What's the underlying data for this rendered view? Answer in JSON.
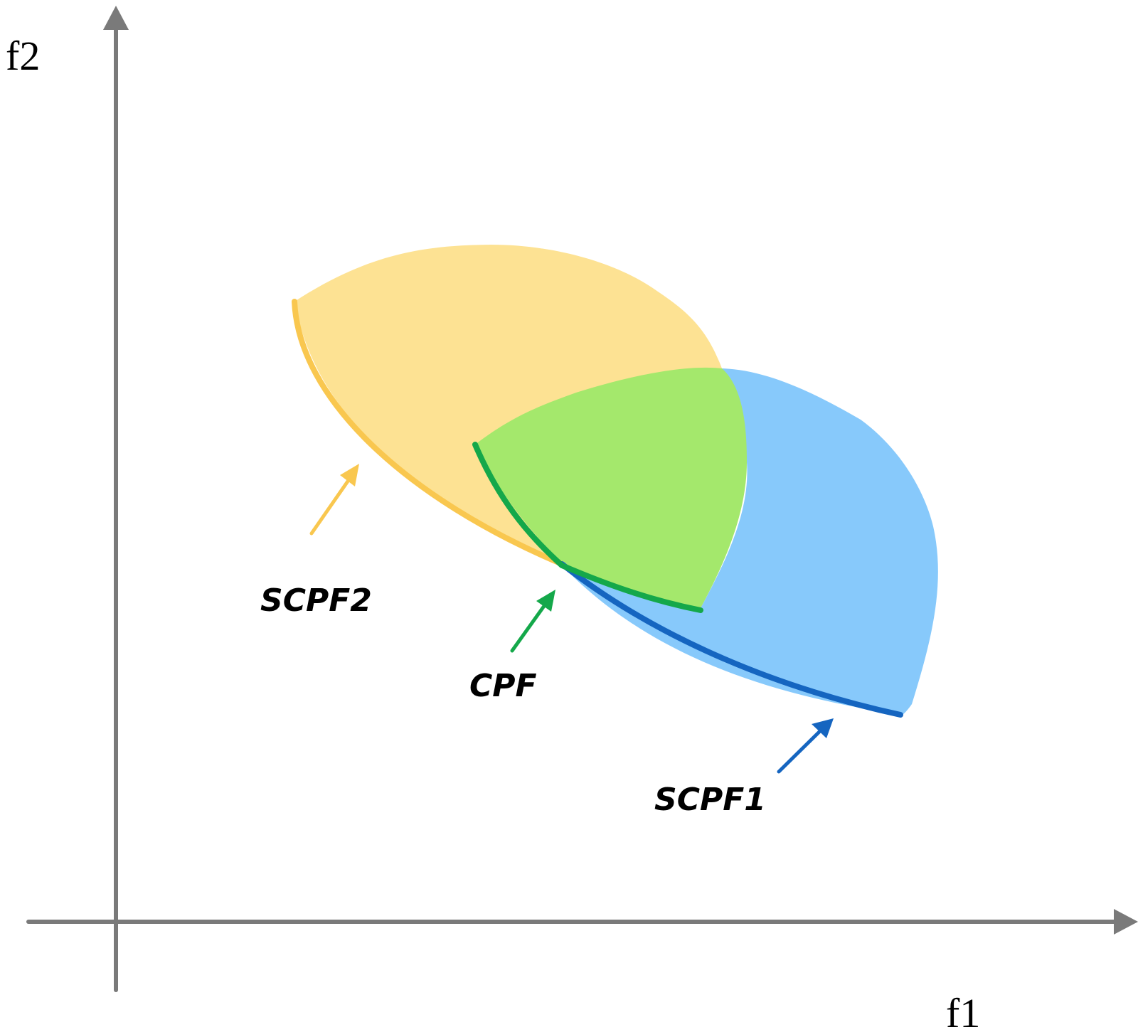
{
  "axes": {
    "x_label": "f1",
    "y_label": "f2",
    "color": "#7a7a7a"
  },
  "regions": {
    "scpf2": {
      "label": "SCPF2",
      "fill": "#fde293",
      "edge": "#f9c74f",
      "arrow": "#f9c74f"
    },
    "scpf1": {
      "label": "SCPF1",
      "fill": "#87c9fb",
      "edge": "#1565c0",
      "arrow": "#1565c0"
    },
    "cpf": {
      "label": "CPF",
      "fill": "#a4e86c",
      "edge": "#14a84a",
      "arrow": "#14a84a"
    }
  }
}
